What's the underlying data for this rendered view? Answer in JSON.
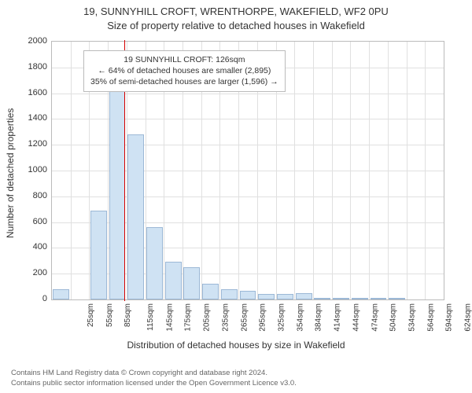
{
  "title": {
    "line1": "19, SUNNYHILL CROFT, WRENTHORPE, WAKEFIELD, WF2 0PU",
    "line2": "Size of property relative to detached houses in Wakefield"
  },
  "chart": {
    "type": "histogram",
    "ylim": [
      0,
      2000
    ],
    "ytick_step": 200,
    "yticks": [
      0,
      200,
      400,
      600,
      800,
      1000,
      1200,
      1400,
      1600,
      1800,
      2000
    ],
    "xlabel": "Distribution of detached houses by size in Wakefield",
    "ylabel": "Number of detached properties",
    "x_categories": [
      "25sqm",
      "55sqm",
      "85sqm",
      "115sqm",
      "145sqm",
      "175sqm",
      "205sqm",
      "235sqm",
      "265sqm",
      "295sqm",
      "325sqm",
      "354sqm",
      "384sqm",
      "414sqm",
      "444sqm",
      "474sqm",
      "504sqm",
      "534sqm",
      "564sqm",
      "594sqm",
      "624sqm"
    ],
    "values": [
      80,
      0,
      690,
      1620,
      1280,
      560,
      290,
      250,
      120,
      80,
      70,
      40,
      40,
      50,
      10,
      5,
      5,
      2,
      2,
      0,
      0
    ],
    "bar_fill": "#cfe2f3",
    "bar_border": "#9cb8d6",
    "grid_color": "#e0e0e0",
    "background_color": "#ffffff",
    "axis_color": "#bbbbbb",
    "ref_line": {
      "value_sqm": 126,
      "color": "#d40000"
    },
    "title_fontsize": 13,
    "label_fontsize": 12,
    "tick_fontsize": 11
  },
  "annotation": {
    "line1": "19 SUNNYHILL CROFT: 126sqm",
    "line2": "← 64% of detached houses are smaller (2,895)",
    "line3": "35% of semi-detached houses are larger (1,596) →"
  },
  "footer": {
    "line1": "Contains HM Land Registry data © Crown copyright and database right 2024.",
    "line2": "Contains public sector information licensed under the Open Government Licence v3.0."
  }
}
